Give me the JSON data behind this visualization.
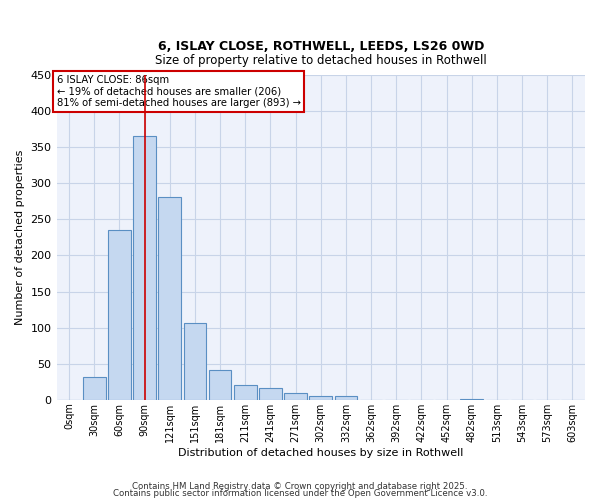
{
  "title_line1": "6, ISLAY CLOSE, ROTHWELL, LEEDS, LS26 0WD",
  "title_line2": "Size of property relative to detached houses in Rothwell",
  "bar_labels": [
    "0sqm",
    "30sqm",
    "60sqm",
    "90sqm",
    "121sqm",
    "151sqm",
    "181sqm",
    "211sqm",
    "241sqm",
    "271sqm",
    "302sqm",
    "332sqm",
    "362sqm",
    "392sqm",
    "422sqm",
    "452sqm",
    "482sqm",
    "513sqm",
    "543sqm",
    "573sqm",
    "603sqm"
  ],
  "bar_values": [
    0,
    31,
    235,
    365,
    281,
    106,
    41,
    20,
    16,
    9,
    5,
    5,
    0,
    0,
    0,
    0,
    1,
    0,
    0,
    0,
    0
  ],
  "bar_color": "#c5d8f0",
  "bar_edge_color": "#5a8fc3",
  "xlabel": "Distribution of detached houses by size in Rothwell",
  "ylabel": "Number of detached properties",
  "ylim": [
    0,
    450
  ],
  "yticks": [
    0,
    50,
    100,
    150,
    200,
    250,
    300,
    350,
    400,
    450
  ],
  "vline_x": 3,
  "vline_color": "#cc0000",
  "annotation_title": "6 ISLAY CLOSE: 86sqm",
  "annotation_line1": "← 19% of detached houses are smaller (206)",
  "annotation_line2": "81% of semi-detached houses are larger (893) →",
  "annotation_box_color": "#cc0000",
  "grid_color": "#c8d4e8",
  "background_color": "#eef2fb",
  "footer_line1": "Contains HM Land Registry data © Crown copyright and database right 2025.",
  "footer_line2": "Contains public sector information licensed under the Open Government Licence v3.0."
}
